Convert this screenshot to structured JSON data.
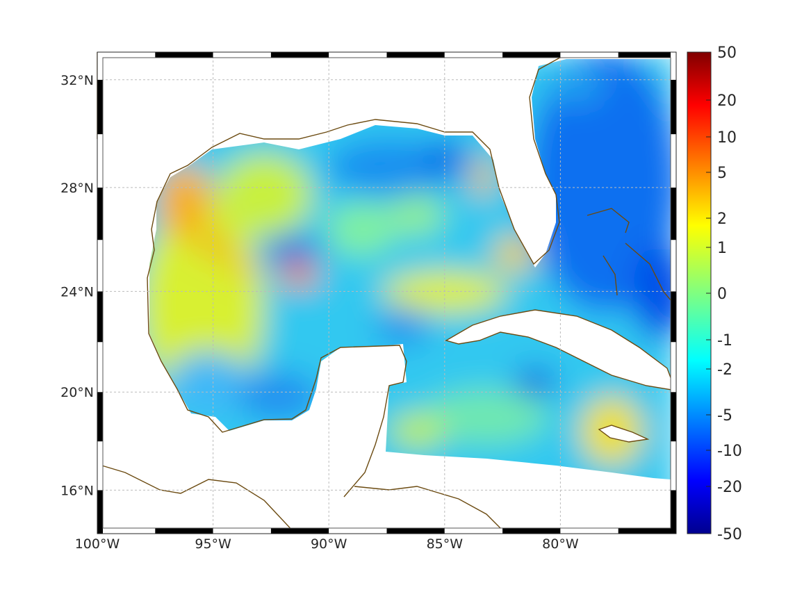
{
  "map": {
    "projection": "mercator",
    "lon_range": [
      -100,
      -75
    ],
    "lat_range": [
      14.2,
      33
    ],
    "lon_ticks": [
      -100,
      -95,
      -90,
      -85,
      -80
    ],
    "lon_labels": [
      "100°W",
      "95°W",
      "90°W",
      "85°W",
      "80°W"
    ],
    "lat_ticks": [
      16,
      20,
      24,
      28,
      32
    ],
    "lat_labels": [
      "16°N",
      "20°N",
      "24°N",
      "28°N",
      "32°N"
    ],
    "grid": true,
    "coast_color": "#6b4a10"
  },
  "colorbar": {
    "colormap": "jet",
    "ticks": [
      "50",
      "20",
      "10",
      "5",
      "2",
      "1",
      "0",
      "-1",
      "-2",
      "-5",
      "-10",
      "-20",
      "-50"
    ]
  }
}
